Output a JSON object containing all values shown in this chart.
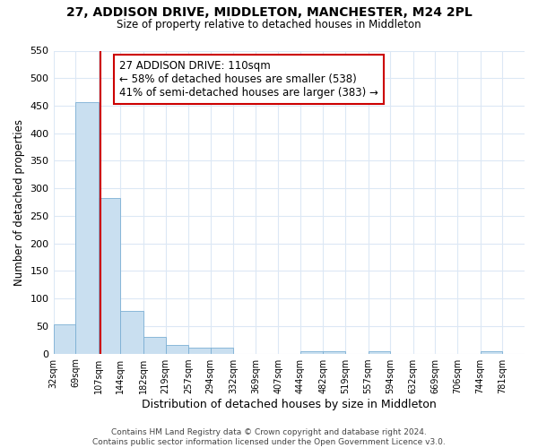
{
  "title": "27, ADDISON DRIVE, MIDDLETON, MANCHESTER, M24 2PL",
  "subtitle": "Size of property relative to detached houses in Middleton",
  "xlabel": "Distribution of detached houses by size in Middleton",
  "ylabel": "Number of detached properties",
  "bar_left_edges": [
    32,
    69,
    107,
    144,
    182,
    219,
    257,
    294,
    332,
    369,
    407,
    444,
    482,
    519,
    557,
    594,
    632,
    669,
    706,
    744
  ],
  "bar_widths": [
    37,
    38,
    37,
    38,
    37,
    38,
    37,
    38,
    37,
    38,
    37,
    38,
    37,
    38,
    37,
    38,
    37,
    38,
    37,
    37
  ],
  "bar_heights": [
    53,
    457,
    283,
    78,
    31,
    15,
    10,
    10,
    0,
    0,
    0,
    5,
    5,
    0,
    5,
    0,
    0,
    0,
    0,
    5
  ],
  "bar_color": "#c9dff0",
  "bar_edgecolor": "#7bafd4",
  "property_line_x": 110,
  "property_line_color": "#cc0000",
  "ylim": [
    0,
    550
  ],
  "yticks": [
    0,
    50,
    100,
    150,
    200,
    250,
    300,
    350,
    400,
    450,
    500,
    550
  ],
  "xtick_labels": [
    "32sqm",
    "69sqm",
    "107sqm",
    "144sqm",
    "182sqm",
    "219sqm",
    "257sqm",
    "294sqm",
    "332sqm",
    "369sqm",
    "407sqm",
    "444sqm",
    "482sqm",
    "519sqm",
    "557sqm",
    "594sqm",
    "632sqm",
    "669sqm",
    "706sqm",
    "744sqm",
    "781sqm"
  ],
  "xtick_positions": [
    32,
    69,
    107,
    144,
    182,
    219,
    257,
    294,
    332,
    369,
    407,
    444,
    482,
    519,
    557,
    594,
    632,
    669,
    706,
    744,
    781
  ],
  "annotation_line1": "27 ADDISON DRIVE: 110sqm",
  "annotation_line2": "← 58% of detached houses are smaller (538)",
  "annotation_line3": "41% of semi-detached houses are larger (383) →",
  "footer_text": "Contains HM Land Registry data © Crown copyright and database right 2024.\nContains public sector information licensed under the Open Government Licence v3.0.",
  "background_color": "#ffffff",
  "grid_color": "#dce8f5"
}
